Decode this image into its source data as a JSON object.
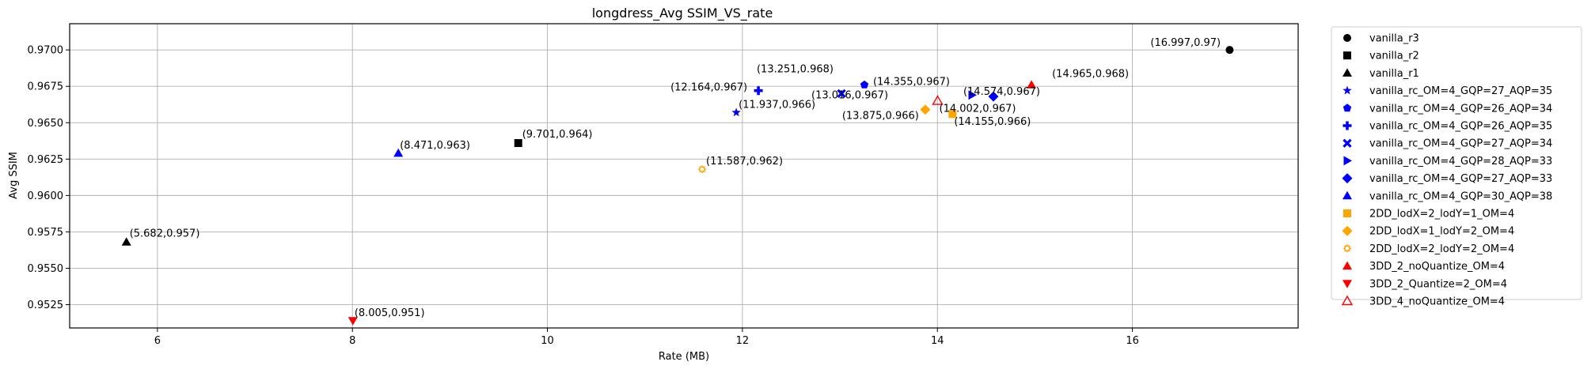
{
  "chart_data": {
    "type": "scatter",
    "title": "longdress_Avg SSIM_VS_rate",
    "xlabel": "Rate (MB)",
    "ylabel": "Avg SSIM",
    "xlim": [
      5.1,
      17.7
    ],
    "ylim": [
      0.9509,
      0.9718
    ],
    "xticks": [
      "6",
      "8",
      "10",
      "12",
      "14",
      "16"
    ],
    "yticks": [
      "0.9525",
      "0.9550",
      "0.9575",
      "0.9600",
      "0.9625",
      "0.9650",
      "0.9675",
      "0.9700"
    ],
    "grid": true,
    "legend_position": "outside-right",
    "series": [
      {
        "name": "vanilla_r3",
        "marker": "circle",
        "color": "#000000",
        "x": 16.997,
        "y": 0.97,
        "label": "(16.997,0.97)"
      },
      {
        "name": "vanilla_r2",
        "marker": "square",
        "color": "#000000",
        "x": 9.701,
        "y": 0.9636,
        "label": "(9.701,0.964)"
      },
      {
        "name": "vanilla_r1",
        "marker": "triangle-up",
        "color": "#000000",
        "x": 5.682,
        "y": 0.9568,
        "label": "(5.682,0.957)"
      },
      {
        "name": "vanilla_rc_OM=4_GQP=27_AQP=35",
        "marker": "star",
        "color": "#0000ff",
        "x": 11.937,
        "y": 0.9657,
        "label": "(11.937,0.966)"
      },
      {
        "name": "vanilla_rc_OM=4_GQP=26_AQP=34",
        "marker": "pentagon",
        "color": "#0000ff",
        "x": 13.251,
        "y": 0.9676,
        "label": "(13.251,0.968)"
      },
      {
        "name": "vanilla_rc_OM=4_GQP=26_AQP=35",
        "marker": "plus",
        "color": "#0000ff",
        "x": 12.164,
        "y": 0.9672,
        "label": "(12.164,0.967)"
      },
      {
        "name": "vanilla_rc_OM=4_GQP=27_AQP=34",
        "marker": "x",
        "color": "#0000ff",
        "x": 13.016,
        "y": 0.967,
        "label": "(13.016,0.967)"
      },
      {
        "name": "vanilla_rc_OM=4_GQP=28_AQP=33",
        "marker": "triangle-right",
        "color": "#0000ff",
        "x": 14.355,
        "y": 0.9669,
        "label": "(14.355,0.967)"
      },
      {
        "name": "vanilla_rc_OM=4_GQP=27_AQP=33",
        "marker": "diamond",
        "color": "#0000ff",
        "x": 14.574,
        "y": 0.9668,
        "label": "(14.574,0.967)"
      },
      {
        "name": "vanilla_rc_OM=4_GQP=30_AQP=38",
        "marker": "triangle-up",
        "color": "#0000ff",
        "x": 8.471,
        "y": 0.9629,
        "label": "(8.471,0.963)"
      },
      {
        "name": "2DD_lodX=2_lodY=1_OM=4",
        "marker": "square",
        "color": "#ffa500",
        "x": 14.155,
        "y": 0.9656,
        "label": "(14.155,0.966)"
      },
      {
        "name": "2DD_lodX=1_lodY=2_OM=4",
        "marker": "diamond",
        "color": "#ffa500",
        "x": 13.875,
        "y": 0.9659,
        "label": "(13.875,0.966)"
      },
      {
        "name": "2DD_lodX=2_lodY=2_OM=4",
        "marker": "sun",
        "color": "#ffa500",
        "x": 11.587,
        "y": 0.9618,
        "label": "(11.587,0.962)"
      },
      {
        "name": "3DD_2_noQuantize_OM=4",
        "marker": "triangle-up",
        "color": "#ff0000",
        "x": 14.965,
        "y": 0.9676,
        "label": "(14.965,0.968)"
      },
      {
        "name": "3DD_2_Quantize=2_OM=4",
        "marker": "triangle-down",
        "color": "#ff0000",
        "x": 8.005,
        "y": 0.9514,
        "label": "(8.005,0.951)"
      },
      {
        "name": "3DD_4_noQuantize_OM=4",
        "marker": "triangle-up-open",
        "color": "#ff0000",
        "x": 14.002,
        "y": 0.9665,
        "label": "(14.002,0.967)"
      }
    ]
  }
}
